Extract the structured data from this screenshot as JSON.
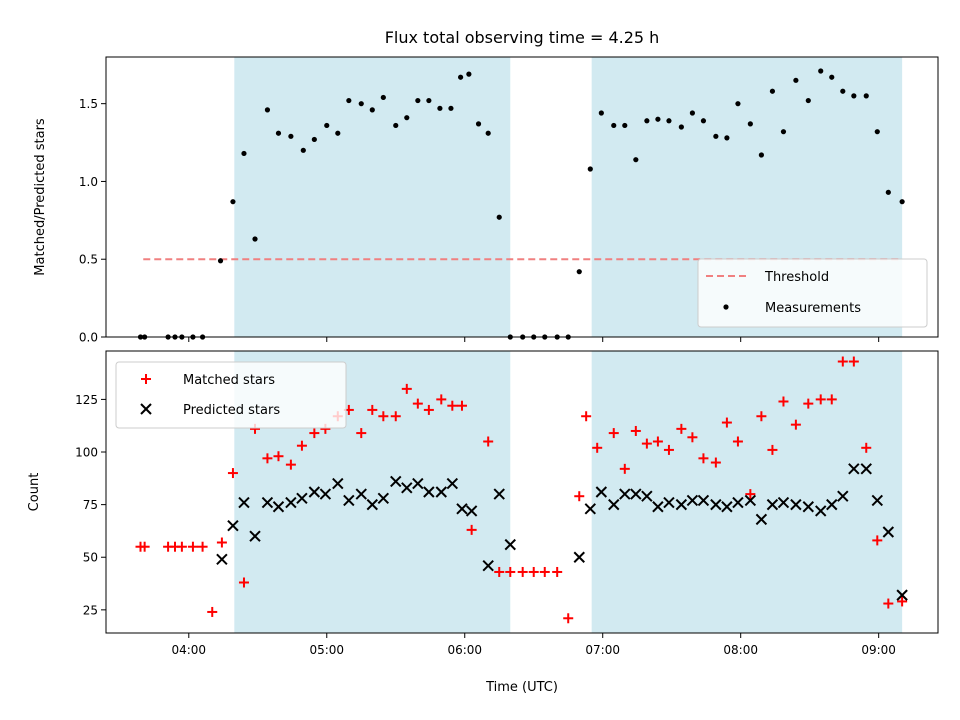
{
  "title": "Flux total observing time = 4.25 h",
  "xlabel": "Time (UTC)",
  "colors": {
    "shade": "#add8e6",
    "threshold": "#f08080",
    "measurements": "#000000",
    "matched": "#ff0000",
    "predicted": "#000000"
  },
  "chart_data": [
    {
      "type": "scatter",
      "ylabel": "Matched/Predicted stars",
      "x_unit": "hours UTC",
      "xlim": [
        3.4,
        9.43
      ],
      "ylim": [
        0,
        1.8
      ],
      "x_ticks": [
        4,
        5,
        6,
        7,
        8,
        9
      ],
      "x_tick_labels": [
        "04:00",
        "05:00",
        "06:00",
        "07:00",
        "08:00",
        "09:00"
      ],
      "y_ticks": [
        0,
        0.5,
        1.0,
        1.5
      ],
      "y_tick_labels": [
        "0.0",
        "0.5",
        "1.0",
        "1.5"
      ],
      "shaded_intervals": [
        [
          4.33,
          6.33
        ],
        [
          6.92,
          9.17
        ]
      ],
      "threshold": {
        "name": "Threshold",
        "y": 0.5,
        "x_range": [
          3.67,
          9.17
        ]
      },
      "legend": {
        "position": "lower-right",
        "entries": [
          "Threshold",
          "Measurements"
        ]
      },
      "series": [
        {
          "name": "Measurements",
          "x": [
            3.65,
            3.68,
            3.85,
            3.9,
            3.95,
            4.03,
            4.1,
            4.23,
            4.32,
            4.4,
            4.48,
            4.57,
            4.65,
            4.74,
            4.83,
            4.91,
            5.0,
            5.08,
            5.16,
            5.25,
            5.33,
            5.41,
            5.5,
            5.58,
            5.66,
            5.74,
            5.82,
            5.9,
            5.97,
            6.03,
            6.1,
            6.17,
            6.25,
            6.33,
            6.42,
            6.5,
            6.58,
            6.67,
            6.75,
            6.83,
            6.91,
            6.99,
            7.08,
            7.16,
            7.24,
            7.32,
            7.4,
            7.48,
            7.57,
            7.65,
            7.73,
            7.82,
            7.9,
            7.98,
            8.07,
            8.15,
            8.23,
            8.31,
            8.4,
            8.49,
            8.58,
            8.66,
            8.74,
            8.82,
            8.91,
            8.99,
            9.07,
            9.17
          ],
          "y": [
            0.0,
            0.0,
            0.0,
            0.0,
            0.0,
            0.0,
            0.0,
            0.49,
            0.87,
            1.18,
            0.63,
            1.46,
            1.31,
            1.29,
            1.2,
            1.27,
            1.36,
            1.31,
            1.52,
            1.5,
            1.46,
            1.54,
            1.36,
            1.41,
            1.52,
            1.52,
            1.47,
            1.47,
            1.67,
            1.69,
            1.37,
            1.31,
            0.77,
            0.0,
            0.0,
            0.0,
            0.0,
            0.0,
            0.0,
            0.42,
            1.08,
            1.44,
            1.36,
            1.36,
            1.14,
            1.39,
            1.4,
            1.39,
            1.35,
            1.44,
            1.39,
            1.29,
            1.28,
            1.5,
            1.37,
            1.17,
            1.58,
            1.32,
            1.65,
            1.52,
            1.71,
            1.67,
            1.58,
            1.55,
            1.55,
            1.32,
            0.93,
            0.87
          ]
        }
      ]
    },
    {
      "type": "scatter",
      "ylabel": "Count",
      "x_unit": "hours UTC",
      "xlim": [
        3.4,
        9.43
      ],
      "ylim": [
        14,
        148
      ],
      "x_ticks": [
        4,
        5,
        6,
        7,
        8,
        9
      ],
      "x_tick_labels": [
        "04:00",
        "05:00",
        "06:00",
        "07:00",
        "08:00",
        "09:00"
      ],
      "y_ticks": [
        25,
        50,
        75,
        100,
        125
      ],
      "y_tick_labels": [
        "25",
        "50",
        "75",
        "100",
        "125"
      ],
      "shaded_intervals": [
        [
          4.33,
          6.33
        ],
        [
          6.92,
          9.17
        ]
      ],
      "legend": {
        "position": "upper-left",
        "entries": [
          "Matched stars",
          "Predicted stars"
        ]
      },
      "series": [
        {
          "name": "Matched stars",
          "marker": "plus",
          "x": [
            3.65,
            3.68,
            3.85,
            3.9,
            3.95,
            4.03,
            4.1,
            4.17,
            4.24,
            4.32,
            4.4,
            4.48,
            4.57,
            4.65,
            4.74,
            4.82,
            4.91,
            4.99,
            5.08,
            5.16,
            5.25,
            5.33,
            5.41,
            5.5,
            5.58,
            5.66,
            5.74,
            5.83,
            5.91,
            5.98,
            6.05,
            6.17,
            6.25,
            6.33,
            6.42,
            6.5,
            6.58,
            6.67,
            6.75,
            6.83,
            6.88,
            6.96,
            7.08,
            7.16,
            7.24,
            7.32,
            7.4,
            7.48,
            7.57,
            7.65,
            7.73,
            7.82,
            7.9,
            7.98,
            8.07,
            8.15,
            8.23,
            8.31,
            8.4,
            8.49,
            8.58,
            8.66,
            8.74,
            8.82,
            8.91,
            8.99,
            9.07,
            9.17
          ],
          "y": [
            55,
            55,
            55,
            55,
            55,
            55,
            55,
            24,
            57,
            90,
            38,
            111,
            97,
            98,
            94,
            103,
            109,
            111,
            117,
            120,
            109,
            120,
            117,
            117,
            130,
            123,
            120,
            125,
            122,
            122,
            63,
            105,
            43,
            43,
            43,
            43,
            43,
            43,
            21,
            79,
            117,
            102,
            109,
            92,
            110,
            104,
            105,
            101,
            111,
            107,
            97,
            95,
            114,
            105,
            80,
            117,
            101,
            124,
            113,
            123,
            125,
            125,
            143,
            143,
            102,
            58,
            28,
            29
          ],
          "note": "Ordered as visible in the picture."
        },
        {
          "name": "Predicted stars",
          "marker": "x",
          "x": [
            4.24,
            4.32,
            4.4,
            4.48,
            4.57,
            4.65,
            4.74,
            4.82,
            4.91,
            4.99,
            5.08,
            5.16,
            5.25,
            5.33,
            5.41,
            5.5,
            5.58,
            5.66,
            5.74,
            5.83,
            5.91,
            5.98,
            6.05,
            6.17,
            6.25,
            6.33,
            6.83,
            6.91,
            6.99,
            7.08,
            7.16,
            7.24,
            7.32,
            7.4,
            7.48,
            7.57,
            7.65,
            7.73,
            7.82,
            7.9,
            7.98,
            8.07,
            8.15,
            8.23,
            8.31,
            8.4,
            8.49,
            8.58,
            8.66,
            8.74,
            8.82,
            8.91,
            8.99,
            9.07,
            9.17
          ],
          "y": [
            49,
            65,
            76,
            60,
            76,
            74,
            76,
            78,
            81,
            80,
            85,
            77,
            80,
            75,
            78,
            86,
            83,
            85,
            81,
            81,
            85,
            73,
            72,
            46,
            80,
            56,
            50,
            73,
            81,
            75,
            80,
            80,
            79,
            74,
            76,
            75,
            77,
            77,
            75,
            74,
            76,
            77,
            68,
            75,
            76,
            75,
            74,
            72,
            75,
            79,
            92,
            92,
            77,
            62,
            32
          ]
        }
      ]
    }
  ]
}
